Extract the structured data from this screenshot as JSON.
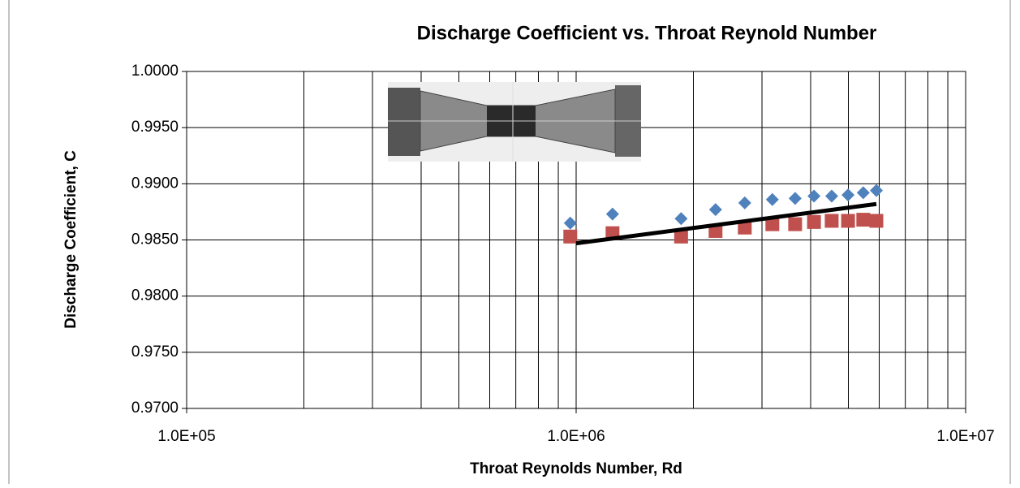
{
  "chart_data": {
    "type": "scatter",
    "title": "Discharge Coefficient vs. Throat Reynold Number",
    "x_label": "Throat Reynolds Number, Rd",
    "y_label": "Discharge Coefficient, C",
    "xscale": "log",
    "grid": true,
    "xlim": [
      100000,
      10000000
    ],
    "ylim": [
      0.97,
      1.0
    ],
    "xticks": [
      {
        "value": 100000,
        "label": "1.0E+05"
      },
      {
        "value": 1000000,
        "label": "1.0E+06"
      },
      {
        "value": 10000000,
        "label": "1.0E+07"
      }
    ],
    "xminor": [
      200000,
      300000,
      400000,
      500000,
      600000,
      700000,
      800000,
      900000,
      2000000,
      3000000,
      4000000,
      5000000,
      6000000,
      7000000,
      8000000,
      9000000
    ],
    "yticks": [
      {
        "value": 0.97,
        "label": "0.9700"
      },
      {
        "value": 0.975,
        "label": "0.9750"
      },
      {
        "value": 0.98,
        "label": "0.9800"
      },
      {
        "value": 0.985,
        "label": "0.9850"
      },
      {
        "value": 0.99,
        "label": "0.9900"
      },
      {
        "value": 0.995,
        "label": "0.9950"
      },
      {
        "value": 1.0,
        "label": "1.0000"
      }
    ],
    "series": [
      {
        "color": "#4f81bd",
        "marker": "diamond",
        "x": [
          966000,
          1240000,
          1860000,
          2280000,
          2710000,
          3190000,
          3650000,
          4080000,
          4530000,
          4990000,
          5460000,
          5900000
        ],
        "values": [
          0.9865,
          0.9873,
          0.9869,
          0.9877,
          0.9883,
          0.9886,
          0.9887,
          0.9889,
          0.9889,
          0.989,
          0.9892,
          0.9894
        ]
      },
      {
        "color": "#c0504d",
        "marker": "square",
        "x": [
          966000,
          1240000,
          1860000,
          2280000,
          2710000,
          3190000,
          3650000,
          4080000,
          4530000,
          4990000,
          5460000,
          5900000
        ],
        "values": [
          0.9853,
          0.9856,
          0.9853,
          0.9858,
          0.9861,
          0.9864,
          0.9864,
          0.9866,
          0.9867,
          0.9867,
          0.9868,
          0.9867
        ]
      },
      {
        "color": "#000000",
        "marker": "line",
        "x": [
          1000000,
          5900000
        ],
        "values": [
          0.9847,
          0.9882
        ]
      }
    ]
  }
}
